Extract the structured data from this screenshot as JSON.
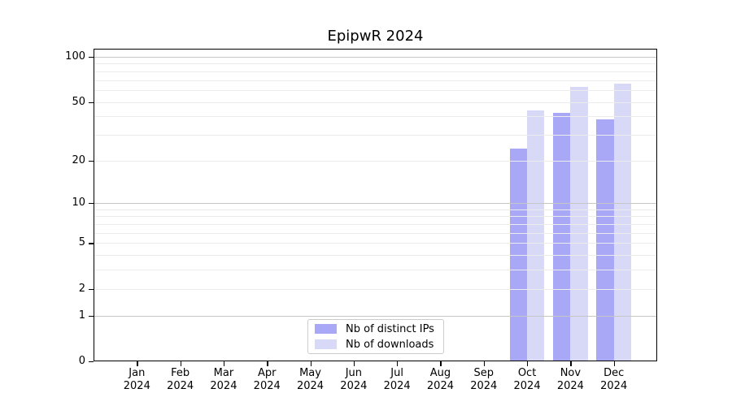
{
  "chart_data": {
    "type": "bar",
    "title": "EpipwR 2024",
    "categories": [
      "Jan",
      "Feb",
      "Mar",
      "Apr",
      "May",
      "Jun",
      "Jul",
      "Aug",
      "Sep",
      "Oct",
      "Nov",
      "Dec"
    ],
    "category_sublabel": "2024",
    "series": [
      {
        "name": "Nb of distinct IPs",
        "color": "#a8a8f7",
        "values": [
          null,
          null,
          null,
          null,
          null,
          null,
          null,
          null,
          null,
          24,
          42,
          38
        ]
      },
      {
        "name": "Nb of downloads",
        "color": "#d8d8f7",
        "values": [
          null,
          null,
          null,
          null,
          null,
          null,
          null,
          null,
          null,
          44,
          63,
          66
        ]
      }
    ],
    "yscale": "log1p",
    "ylim": [
      0,
      113
    ],
    "yticks": [
      0,
      1,
      2,
      5,
      10,
      20,
      50,
      100
    ],
    "gridlines": {
      "minor": [
        2,
        3,
        4,
        5,
        6,
        7,
        8,
        9,
        20,
        30,
        40,
        50,
        60,
        70,
        80,
        90
      ],
      "major": [
        1,
        10,
        100
      ]
    },
    "legend_position": "lower-center",
    "xlabel": "",
    "ylabel": ""
  },
  "colors": {
    "background": "#ffffff",
    "axis": "#000000",
    "grid_minor": "#ececec",
    "grid_major": "#c6c6c6",
    "legend_border": "#cccccc"
  }
}
